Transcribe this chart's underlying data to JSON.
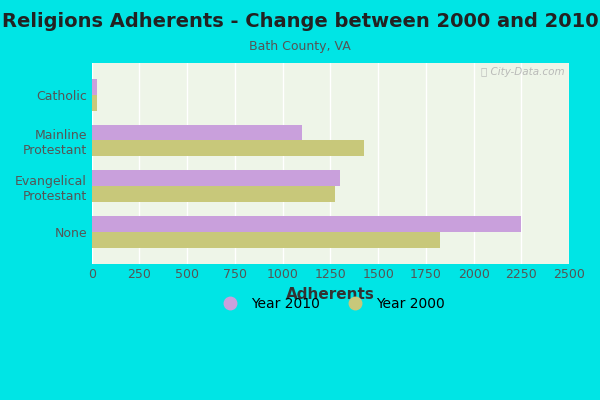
{
  "title": "Religions Adherents - Change between 2000 and 2010",
  "subtitle": "Bath County, VA",
  "xlabel": "Adherents",
  "categories": [
    "None",
    "Evangelical\nProtestant",
    "Mainline\nProtestant",
    "Catholic"
  ],
  "year2010": [
    2250,
    1300,
    1100,
    30
  ],
  "year2000": [
    1825,
    1275,
    1425,
    25
  ],
  "color2010": "#c9a0dc",
  "color2000": "#c8c87a",
  "background_outer": "#00e5e5",
  "background_inner": "#eef5e8",
  "xlim": [
    0,
    2500
  ],
  "xticks": [
    0,
    250,
    500,
    750,
    1000,
    1250,
    1500,
    1750,
    2000,
    2250,
    2500
  ],
  "bar_height": 0.35,
  "title_fontsize": 14,
  "subtitle_fontsize": 9,
  "xlabel_fontsize": 11,
  "tick_fontsize": 9,
  "legend_fontsize": 10,
  "watermark": "ⓘ City-Data.com"
}
